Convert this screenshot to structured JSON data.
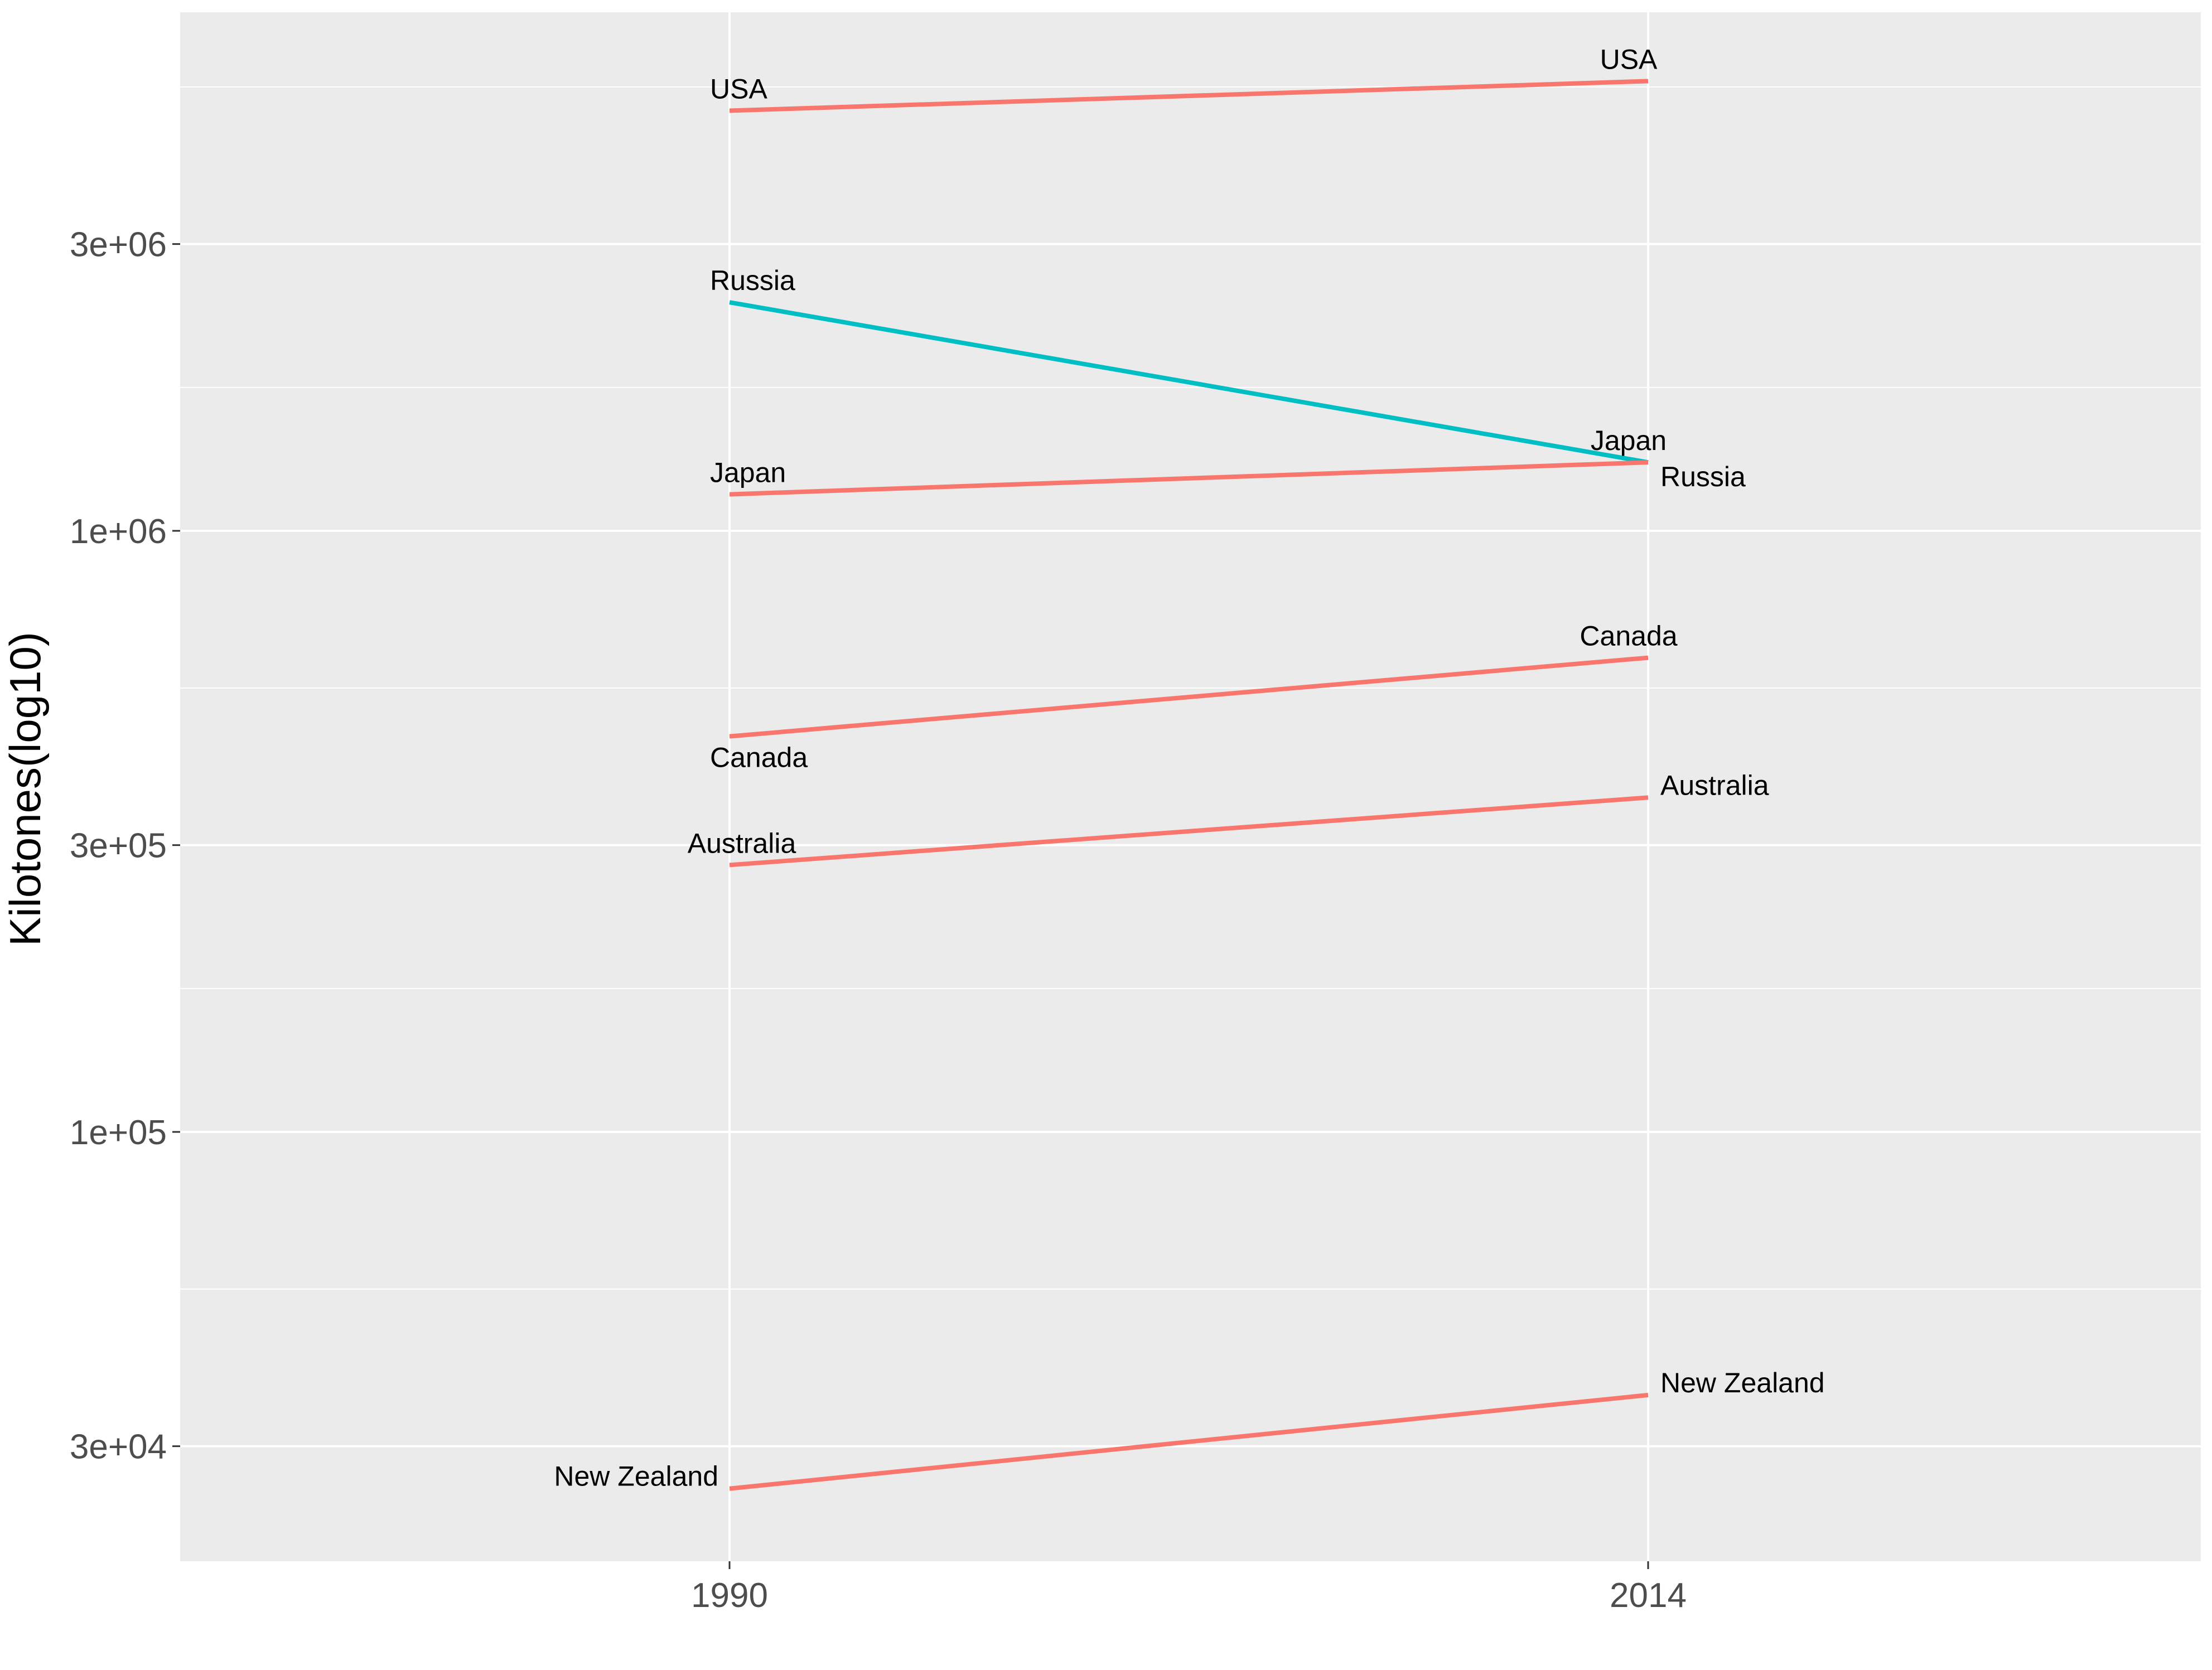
{
  "chart_data": {
    "type": "line",
    "chart_kind": "slope",
    "title": "",
    "xlabel": "",
    "ylabel": "Kilotones(log10)",
    "y_scale": "log10",
    "x_categories": [
      "1990",
      "2014"
    ],
    "y_ticks": [
      {
        "value": 30000,
        "label": "3e+04"
      },
      {
        "value": 100000,
        "label": "1e+05"
      },
      {
        "value": 300000,
        "label": "3e+05"
      },
      {
        "value": 1000000,
        "label": "1e+06"
      },
      {
        "value": 3000000,
        "label": "3e+06"
      }
    ],
    "ylim": [
      20000,
      8000000
    ],
    "grid": true,
    "legend": "none",
    "colors": {
      "increase": "#F8766D",
      "decrease": "#00BFC4"
    },
    "series": [
      {
        "name": "USA",
        "values": [
          5000000,
          5600000
        ],
        "trend": "increase"
      },
      {
        "name": "Russia",
        "values": [
          2400000,
          1300000
        ],
        "trend": "decrease"
      },
      {
        "name": "Japan",
        "values": [
          1150000,
          1300000
        ],
        "trend": "increase"
      },
      {
        "name": "Canada",
        "values": [
          455000,
          615000
        ],
        "trend": "increase"
      },
      {
        "name": "Australia",
        "values": [
          278000,
          360000
        ],
        "trend": "increase"
      },
      {
        "name": "New Zealand",
        "values": [
          25500,
          36500
        ],
        "trend": "increase"
      }
    ]
  }
}
